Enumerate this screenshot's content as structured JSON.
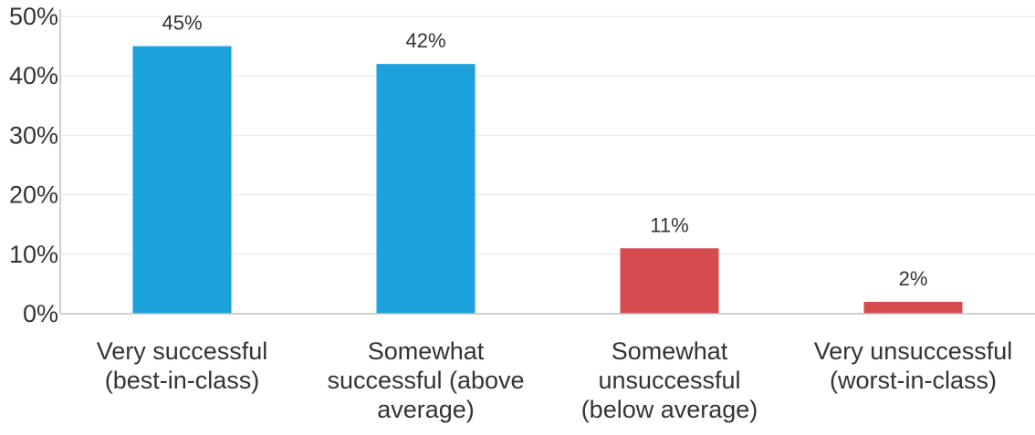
{
  "chart_data": {
    "type": "bar",
    "categories": [
      [
        "Very successful",
        "(best-in-class)"
      ],
      [
        "Somewhat",
        "successful (above",
        "average)"
      ],
      [
        "Somewhat",
        "unsuccessful",
        "(below average)"
      ],
      [
        "Very unsuccessful",
        "(worst-in-class)"
      ]
    ],
    "values": [
      45,
      42,
      11,
      2
    ],
    "data_labels": [
      "45%",
      "42%",
      "11%",
      "2%"
    ],
    "bar_colors": [
      "#1ba1dc",
      "#1ba1dc",
      "#d64b4d",
      "#d64b4d"
    ],
    "ylim": [
      0,
      50
    ],
    "y_ticks": [
      0,
      10,
      20,
      30,
      40,
      50
    ],
    "y_tick_labels": [
      "0%",
      "10%",
      "20%",
      "30%",
      "40%",
      "50%"
    ],
    "grid": true,
    "title": "",
    "xlabel": "",
    "ylabel": ""
  },
  "colors": {
    "grid": "#e6e6e6",
    "axis": "#bfbfbf",
    "text": "#333333"
  }
}
